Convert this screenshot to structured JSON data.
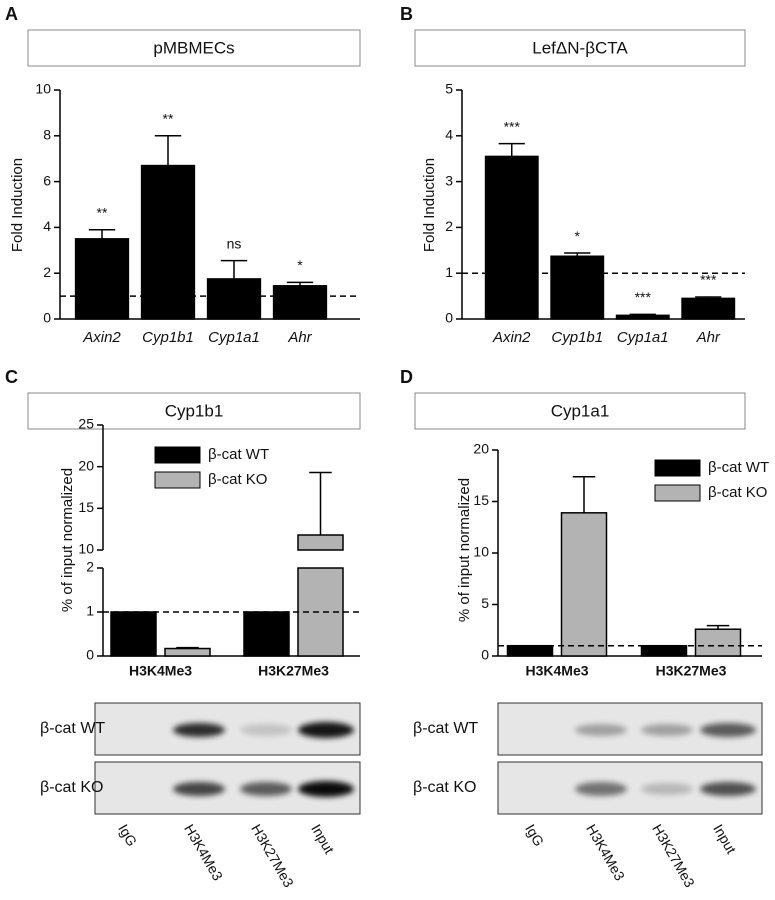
{
  "chart_data": [
    {
      "type": "bar",
      "panel_label": "A",
      "title": "pMBMECs",
      "y_label": "Fold Induction",
      "categories": [
        "Axin2",
        "Cyp1b1",
        "Cyp1a1",
        "Ahr"
      ],
      "values": [
        3.5,
        6.7,
        1.75,
        1.45
      ],
      "errors": [
        0.4,
        1.3,
        0.8,
        0.15
      ],
      "color": "#000000",
      "annotations": [
        "**",
        "**",
        "ns",
        "*"
      ],
      "reference_line": 1,
      "ylim": [
        0,
        10
      ],
      "yticks": [
        0,
        2,
        4,
        6,
        8,
        10
      ]
    },
    {
      "type": "bar",
      "panel_label": "B",
      "title": "LefΔN-βCTA",
      "y_label": "Fold Induction",
      "categories": [
        "Axin2",
        "Cyp1b1",
        "Cyp1a1",
        "Ahr"
      ],
      "values": [
        3.55,
        1.37,
        0.08,
        0.45
      ],
      "errors": [
        0.28,
        0.07,
        0.02,
        0.03
      ],
      "color": "#000000",
      "annotations": [
        "***",
        "*",
        "***",
        "***"
      ],
      "reference_line": 1,
      "ylim": [
        0,
        5
      ],
      "yticks": [
        0,
        1,
        2,
        3,
        4,
        5
      ]
    },
    {
      "type": "grouped-bar",
      "panel_label": "C",
      "title": "Cyp1b1",
      "y_label": "% of input normalized",
      "categories": [
        "H3K4Me3",
        "H3K27Me3"
      ],
      "series": [
        {
          "name": "β-cat WT",
          "color": "#000000",
          "values": [
            1,
            1
          ]
        },
        {
          "name": "β-cat KO",
          "color": "#b3b3b3",
          "values": [
            0.17,
            11.8
          ],
          "errors": [
            0.02,
            7.5
          ]
        }
      ],
      "reference_line": 1,
      "legend": "upper center",
      "segments": [
        {
          "ylim": [
            0,
            2
          ],
          "yticks": [
            0,
            1,
            2
          ]
        },
        {
          "ylim": [
            10,
            25
          ],
          "yticks": [
            10,
            15,
            20,
            25
          ]
        }
      ],
      "gel": {
        "rows": [
          "β-cat WT",
          "β-cat KO"
        ],
        "lanes": [
          "IgG",
          "H3K4Me3",
          "H3K27Me3",
          "Input"
        ]
      }
    },
    {
      "type": "grouped-bar",
      "panel_label": "D",
      "title": "Cyp1a1",
      "y_label": "% of input normalized",
      "categories": [
        "H3K4Me3",
        "H3K27Me3"
      ],
      "series": [
        {
          "name": "β-cat WT",
          "color": "#000000",
          "values": [
            1,
            1
          ]
        },
        {
          "name": "β-cat KO",
          "color": "#b3b3b3",
          "values": [
            13.9,
            2.6
          ],
          "errors": [
            3.5,
            0.35
          ]
        }
      ],
      "reference_line": 1,
      "legend": "upper right",
      "ylim": [
        0,
        20
      ],
      "yticks": [
        0,
        5,
        10,
        15,
        20
      ],
      "gel": {
        "rows": [
          "β-cat WT",
          "β-cat KO"
        ],
        "lanes": [
          "IgG",
          "H3K4Me3",
          "H3K27Me3",
          "Input"
        ]
      }
    }
  ]
}
